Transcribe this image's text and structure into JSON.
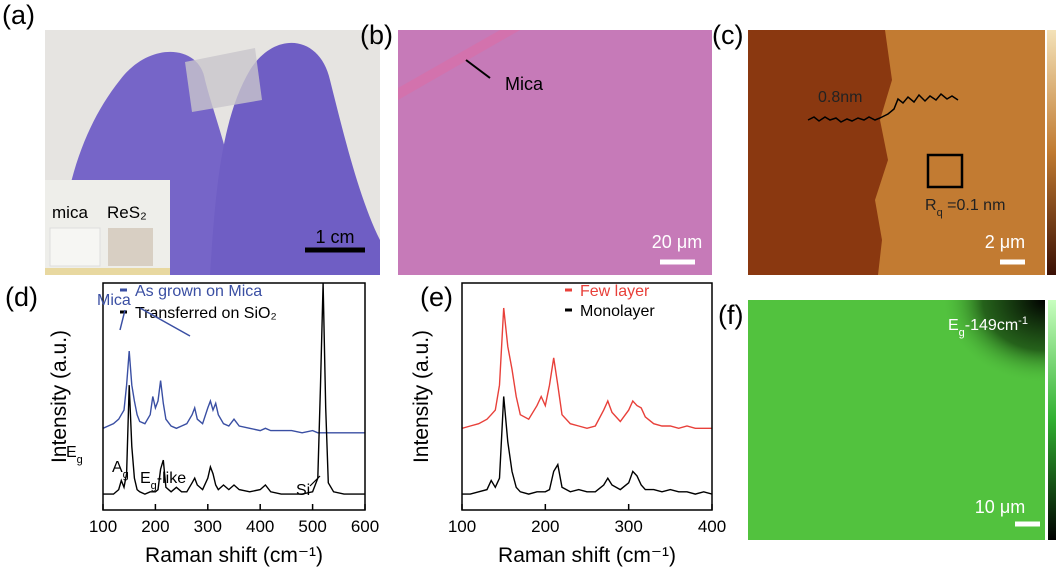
{
  "panels": {
    "a": {
      "label": "(a)",
      "inset_labels": [
        "mica",
        "ReS₂"
      ],
      "scale_bar": "1 cm"
    },
    "b": {
      "label": "(b)",
      "annotation": "Mica",
      "scale_bar": "20 μm"
    },
    "c": {
      "label": "(c)",
      "step_height": "0.8nm",
      "roughness": {
        "text": "R",
        "sub": "q",
        "rest": " =0.1 nm"
      },
      "scale_bar": "2 μm"
    },
    "f": {
      "label": "(f)",
      "map_label": {
        "text": "E",
        "sub": "g",
        "rest": "-149cm",
        "sup": "-1"
      },
      "scale_bar": "10 μm"
    }
  },
  "chart_data": [
    {
      "type": "line",
      "panel_label": "(d)",
      "xlabel": "Raman shift (cm⁻¹)",
      "ylabel": "Intensity (a.u.)",
      "x": [
        100,
        110,
        120,
        130,
        135,
        140,
        145,
        150,
        155,
        160,
        165,
        170,
        180,
        190,
        195,
        200,
        205,
        210,
        215,
        220,
        230,
        240,
        250,
        260,
        270,
        275,
        280,
        290,
        300,
        305,
        310,
        315,
        320,
        330,
        340,
        350,
        360,
        380,
        400,
        410,
        420,
        440,
        460,
        480,
        500,
        510,
        515,
        520,
        525,
        530,
        540,
        560,
        580,
        600
      ],
      "series": [
        {
          "name": "As grown on Mica",
          "color": "#3a4fa3",
          "values": [
            36,
            37,
            38,
            40,
            42,
            44,
            55,
            70,
            55,
            48,
            42,
            39,
            38,
            42,
            50,
            45,
            48,
            57,
            47,
            40,
            37,
            36,
            37,
            38,
            42,
            45,
            40,
            38,
            45,
            48,
            44,
            47,
            42,
            38,
            37,
            40,
            37,
            36,
            35,
            36,
            35,
            35,
            35,
            34,
            35,
            34,
            34,
            34,
            34,
            34,
            34,
            34,
            34,
            34
          ]
        },
        {
          "name": "Transferred on SiO₂",
          "color": "#000000",
          "values": [
            7,
            7,
            7,
            9,
            13,
            10,
            16,
            55,
            28,
            14,
            9,
            8,
            7,
            8,
            8,
            8,
            9,
            18,
            22,
            10,
            8,
            10,
            8,
            8,
            12,
            14,
            11,
            9,
            14,
            19,
            16,
            11,
            9,
            11,
            9,
            11,
            9,
            8,
            9,
            11,
            8,
            7,
            7,
            7,
            8,
            14,
            55,
            100,
            45,
            12,
            8,
            7,
            7,
            7
          ]
        }
      ],
      "xlim": [
        100,
        600
      ],
      "xticks": [
        100,
        200,
        300,
        400,
        500,
        600
      ],
      "ylim": [
        0,
        100
      ],
      "annotations": [
        {
          "text": "Mica"
        },
        {
          "text": "E",
          "sub": "g"
        },
        {
          "text": "A",
          "sub": "g"
        },
        {
          "text": "E",
          "sub": "g",
          "rest": "-like"
        },
        {
          "text": "Si"
        }
      ]
    },
    {
      "type": "line",
      "panel_label": "(e)",
      "xlabel": "Raman shift (cm⁻¹)",
      "ylabel": "Intensity (a.u.)",
      "x": [
        100,
        110,
        120,
        130,
        135,
        140,
        145,
        150,
        155,
        160,
        165,
        170,
        180,
        190,
        195,
        200,
        205,
        210,
        215,
        220,
        230,
        240,
        250,
        260,
        270,
        275,
        280,
        290,
        300,
        305,
        310,
        315,
        320,
        330,
        340,
        350,
        360,
        370,
        380,
        390,
        400
      ],
      "series": [
        {
          "name": "Few layer",
          "color": "#e8403a",
          "values": [
            36,
            37,
            38,
            40,
            42,
            44,
            55,
            89,
            72,
            62,
            50,
            42,
            40,
            46,
            50,
            46,
            55,
            67,
            55,
            42,
            38,
            37,
            36,
            37,
            44,
            48,
            43,
            39,
            44,
            48,
            46,
            45,
            41,
            38,
            37,
            37,
            36,
            37,
            36,
            36,
            36
          ]
        },
        {
          "name": "Monolayer",
          "color": "#000000",
          "values": [
            7,
            7,
            8,
            9,
            13,
            10,
            14,
            50,
            30,
            17,
            10,
            8,
            7,
            8,
            8,
            8,
            9,
            17,
            20,
            10,
            8,
            9,
            8,
            8,
            11,
            14,
            11,
            9,
            12,
            17,
            15,
            11,
            9,
            9,
            8,
            9,
            8,
            8,
            7,
            8,
            7
          ]
        }
      ],
      "xlim": [
        100,
        400
      ],
      "xticks": [
        100,
        200,
        300,
        400
      ],
      "ylim": [
        0,
        100
      ]
    }
  ]
}
